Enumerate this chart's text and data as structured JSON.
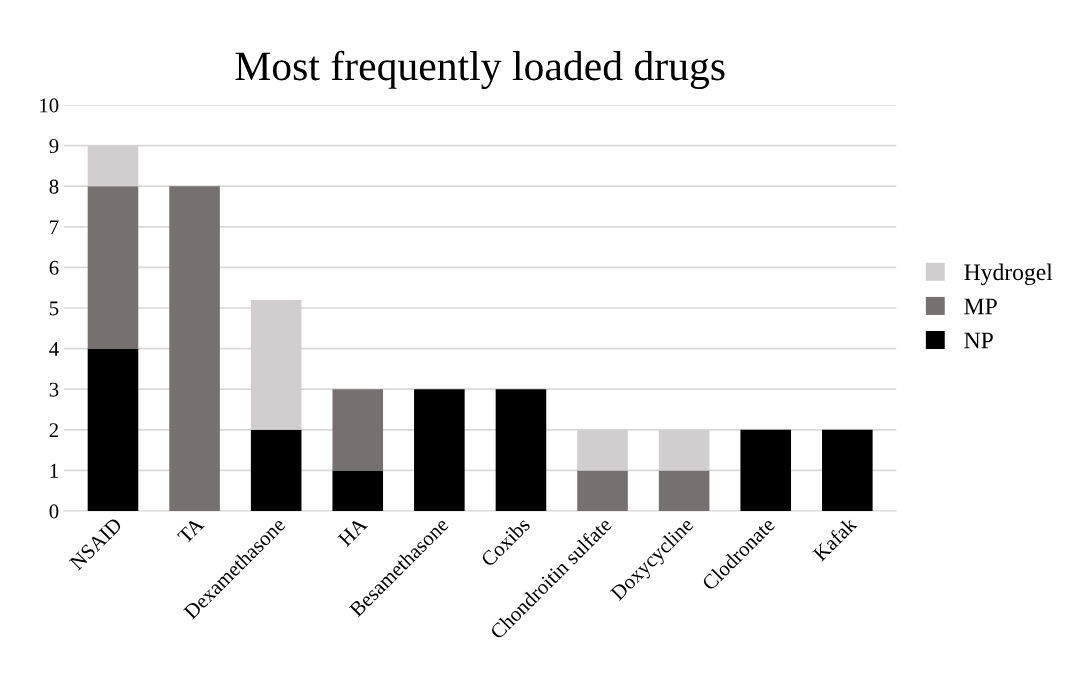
{
  "chart_data": {
    "type": "bar",
    "title": "Most frequently loaded drugs",
    "stacked": true,
    "categories": [
      "NSAID",
      "TA",
      "Dexamethasone",
      "HA",
      "Besamethasone",
      "Coxibs",
      "Chondroitin sulfate",
      "Doxycycline",
      "Clodronate",
      "Kafak"
    ],
    "series": [
      {
        "name": "NP",
        "color": "#000000",
        "values": [
          4,
          0,
          2,
          1,
          3,
          3,
          0,
          0,
          2,
          2
        ]
      },
      {
        "name": "MP",
        "color": "#767171",
        "values": [
          4,
          8,
          0,
          2,
          0,
          0,
          1,
          1,
          0,
          0
        ]
      },
      {
        "name": "Hydrogel",
        "color": "#d0cece",
        "values": [
          1,
          0,
          3.2,
          0,
          0,
          0,
          1,
          1,
          0,
          0
        ]
      }
    ],
    "ylim": [
      0,
      10
    ],
    "yticks": [
      0,
      1,
      2,
      3,
      4,
      5,
      6,
      7,
      8,
      9,
      10
    ],
    "grid": "y",
    "legend": "right"
  }
}
